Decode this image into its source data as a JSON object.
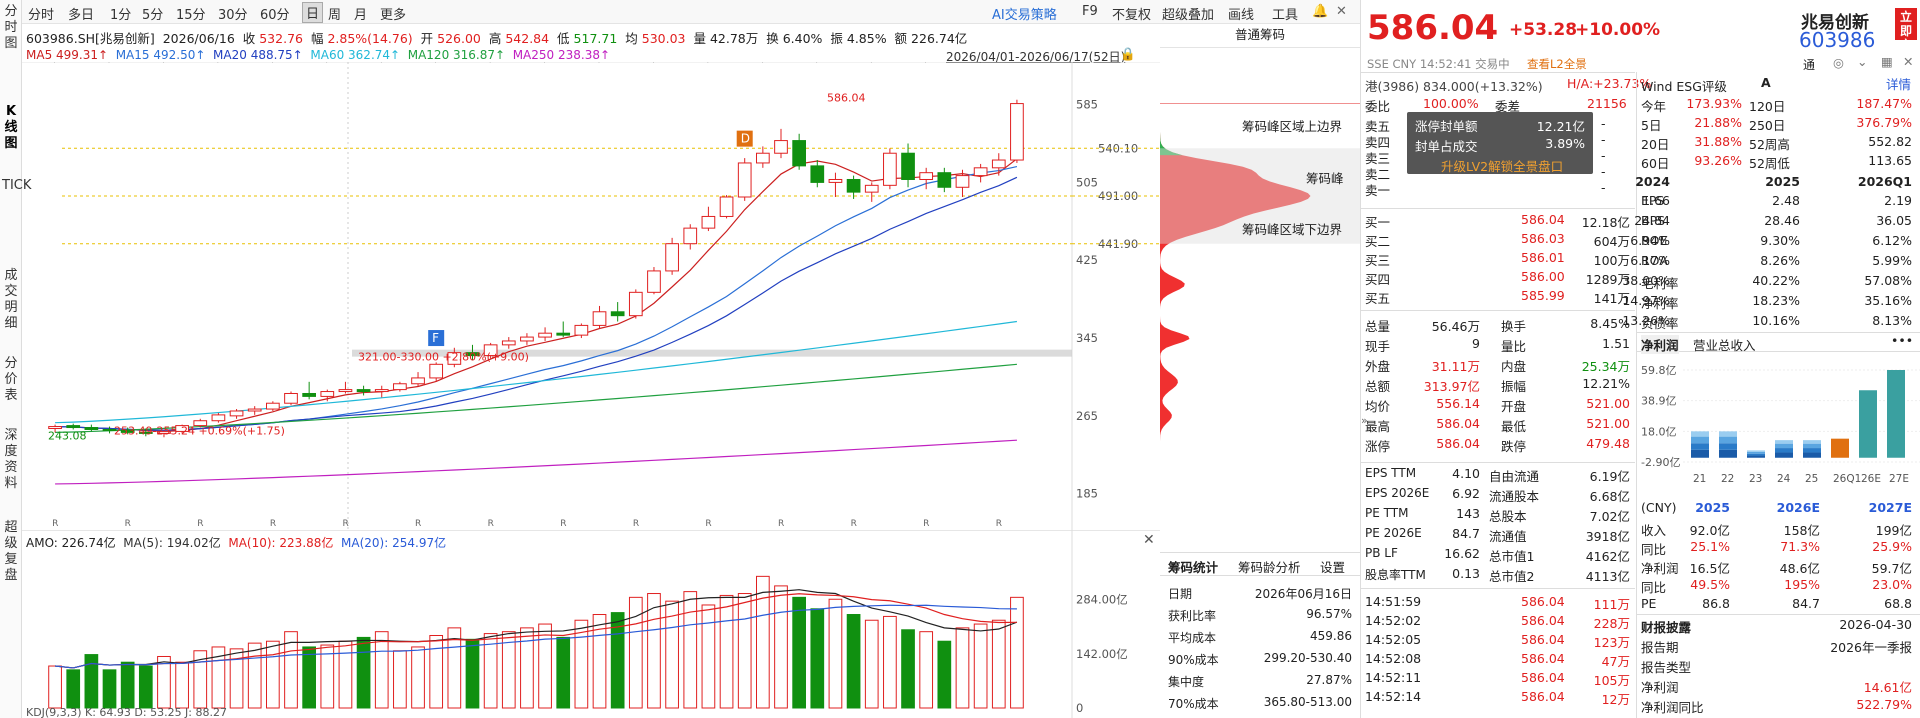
{
  "sidebar": {
    "items": [
      "分时图",
      "K线图",
      "TICK",
      "成交明细",
      "分价表",
      "深度资料",
      "超级复盘"
    ]
  },
  "toolbar": {
    "items": [
      "分时",
      "多日",
      "1分",
      "5分",
      "15分",
      "30分",
      "60分",
      "日",
      "周",
      "月",
      "更多"
    ],
    "active": "日",
    "ai": "AI交易策略",
    "f9": "F9",
    "fq": "不复权",
    "overlay": "超级叠加",
    "draw": "画线",
    "tools": "工具"
  },
  "stock": {
    "code_name": "603986.SH[兆易创新]",
    "date": "2026/06/16",
    "close_l": "收",
    "close": "532.76",
    "amp_l": "幅",
    "amp": "2.85%(14.76)",
    "open_l": "开",
    "open": "526.00",
    "high_l": "高",
    "high": "542.84",
    "low_l": "低",
    "low": "517.71",
    "avg_l": "均",
    "avg": "530.03",
    "vol_l": "量",
    "vol": "42.78万",
    "turn_l": "换",
    "turn": "6.40%",
    "swing_l": "振",
    "swing": "4.85%",
    "amt_l": "额",
    "amt": "226.74亿"
  },
  "ma": {
    "ma5": "MA5 499.31↑",
    "ma15": "MA15 492.50↑",
    "ma20": "MA20 488.75↑",
    "ma60": "MA60 362.74↑",
    "ma120": "MA120 316.87↑",
    "ma250": "MA250 238.38↑",
    "range": "2026/04/01-2026/06/17(52日)"
  },
  "chart_data": {
    "type": "candlestick",
    "price_ticks": [
      "585",
      "540.10",
      "505",
      "491.00",
      "441.90",
      "425",
      "345",
      "265",
      "185"
    ],
    "vol_ticks": [
      "284.00亿",
      "142.00亿",
      "0"
    ],
    "annotations": [
      "586.04",
      "321.00-330.00 +2.80%(+9.00)",
      "253.49-255.24 +0.69%(+1.75)",
      "243.08",
      "D",
      "F"
    ],
    "candles": [
      [
        252,
        256,
        248,
        254
      ],
      [
        255,
        257,
        251,
        253
      ],
      [
        253,
        256,
        249,
        251
      ],
      [
        251,
        254,
        247,
        250
      ],
      [
        250,
        253,
        246,
        248
      ],
      [
        248,
        252,
        244,
        247
      ],
      [
        247,
        250,
        243,
        249
      ],
      [
        249,
        256,
        247,
        255
      ],
      [
        255,
        262,
        253,
        260
      ],
      [
        260,
        268,
        258,
        266
      ],
      [
        265,
        272,
        262,
        270
      ],
      [
        270,
        275,
        266,
        272
      ],
      [
        272,
        280,
        270,
        278
      ],
      [
        278,
        290,
        276,
        288
      ],
      [
        288,
        300,
        282,
        285
      ],
      [
        285,
        292,
        280,
        290
      ],
      [
        290,
        300,
        288,
        292
      ],
      [
        292,
        296,
        286,
        290
      ],
      [
        290,
        296,
        284,
        292
      ],
      [
        292,
        300,
        290,
        298
      ],
      [
        298,
        310,
        295,
        304
      ],
      [
        304,
        320,
        300,
        318
      ],
      [
        318,
        335,
        315,
        330
      ],
      [
        330,
        338,
        322,
        327
      ],
      [
        327,
        340,
        324,
        338
      ],
      [
        338,
        346,
        334,
        342
      ],
      [
        342,
        350,
        338,
        346
      ],
      [
        346,
        356,
        342,
        350
      ],
      [
        350,
        362,
        346,
        348
      ],
      [
        348,
        360,
        345,
        358
      ],
      [
        358,
        378,
        355,
        372
      ],
      [
        372,
        382,
        362,
        368
      ],
      [
        368,
        395,
        365,
        392
      ],
      [
        392,
        418,
        390,
        414
      ],
      [
        414,
        448,
        410,
        442
      ],
      [
        442,
        462,
        436,
        458
      ],
      [
        458,
        480,
        455,
        470
      ],
      [
        470,
        492,
        468,
        490
      ],
      [
        490,
        530,
        486,
        525
      ],
      [
        525,
        542,
        520,
        535
      ],
      [
        535,
        560,
        530,
        548
      ],
      [
        548,
        555,
        518,
        522
      ],
      [
        522,
        528,
        500,
        505
      ],
      [
        505,
        515,
        490,
        508
      ],
      [
        508,
        512,
        488,
        495
      ],
      [
        495,
        505,
        485,
        502
      ],
      [
        502,
        540,
        498,
        535
      ],
      [
        535,
        545,
        500,
        508
      ],
      [
        508,
        520,
        498,
        515
      ],
      [
        515,
        520,
        495,
        500
      ],
      [
        500,
        518,
        490,
        512
      ],
      [
        512,
        524,
        505,
        520
      ],
      [
        520,
        535,
        512,
        528
      ],
      [
        528,
        590,
        525,
        586.04
      ]
    ],
    "vol": [
      110,
      100,
      140,
      100,
      120,
      110,
      135,
      120,
      150,
      160,
      155,
      170,
      175,
      200,
      160,
      165,
      175,
      185,
      200,
      150,
      160,
      190,
      210,
      180,
      195,
      200,
      210,
      220,
      185,
      230,
      245,
      250,
      290,
      300,
      280,
      305,
      270,
      295,
      300,
      345,
      320,
      290,
      260,
      285,
      245,
      230,
      240,
      205,
      200,
      175,
      210,
      220,
      230,
      290
    ]
  },
  "indicators": {
    "amo": "AMO: 226.74亿",
    "ma5": "MA(5): 194.02亿",
    "ma10": "MA(10): 223.88亿",
    "ma20": "MA(20): 254.97亿",
    "kdj": "KDJ(9,3,3)  K: 64.93  D: 53.25  J: 88.27"
  },
  "chip": {
    "title": "普通筹码",
    "top": "筹码峰区域上边界",
    "peak": "筹码峰",
    "bottom": "筹码峰区域下边界",
    "tabs": [
      "筹码统计",
      "筹码龄分析",
      "设置"
    ],
    "stats": [
      [
        "日期",
        "2026年06月16日"
      ],
      [
        "获利比率",
        "96.57%"
      ],
      [
        "平均成本",
        "459.86"
      ],
      [
        "90%成本",
        "299.20-530.40"
      ],
      [
        "集中度",
        "27.87%"
      ],
      [
        "70%成本",
        "365.80-513.00"
      ]
    ]
  },
  "quote": {
    "price": "586.04",
    "chg": "+53.28",
    "pct": "+10.00%",
    "name": "兆易创新",
    "code": "603986",
    "badge": "立即交易",
    "sub": "SSE  CNY  14:52:41  交易中",
    "l2": "查看L2全景",
    "tong": "通",
    "hk": "港(3986)  834.000(+13.32%)",
    "ha": "H/A:+23.73%",
    "wb_l": "委比",
    "wb": "100.00%",
    "wc_l": "委差",
    "wc": "21156",
    "sells": [
      [
        "卖五",
        "-",
        ""
      ],
      [
        "卖四",
        "-",
        ""
      ],
      [
        "卖三",
        "-",
        ""
      ],
      [
        "卖二",
        "-",
        ""
      ],
      [
        "卖一",
        "-",
        ""
      ]
    ],
    "buys": [
      [
        "买一",
        "586.04",
        "12.18亿"
      ],
      [
        "买二",
        "586.03",
        "604万"
      ],
      [
        "买三",
        "586.01",
        "100万"
      ],
      [
        "买四",
        "586.00",
        "1289万"
      ],
      [
        "买五",
        "585.99",
        "141万"
      ]
    ],
    "popup": {
      "r1l": "涨停封单额",
      "r1v": "12.21亿",
      "r2l": "封单占成交",
      "r2v": "3.89%",
      "btn": "升级LV2解锁全景盘口"
    },
    "stats": [
      [
        "总量",
        "56.46万",
        "换手",
        "8.45%"
      ],
      [
        "现手",
        "9",
        "量比",
        "1.51"
      ],
      [
        "外盘",
        "31.11万",
        "内盘",
        "25.34万"
      ],
      [
        "总额",
        "313.97亿",
        "振幅",
        "12.21%"
      ],
      [
        "均价",
        "556.14",
        "开盘",
        "521.00"
      ],
      [
        "最高",
        "586.04",
        "最低",
        "521.00"
      ],
      [
        "涨停",
        "586.04",
        "跌停",
        "479.48"
      ]
    ],
    "val": [
      [
        "EPS TTM",
        "4.10",
        "自由流通",
        "6.19亿"
      ],
      [
        "EPS 2026E",
        "6.92",
        "流通股本",
        "6.68亿"
      ],
      [
        "PE TTM",
        "143",
        "总股本",
        "7.02亿"
      ],
      [
        "PE 2026E",
        "84.7",
        "流通值",
        "3918亿"
      ],
      [
        "PB LF",
        "16.62",
        "总市值1",
        "4162亿"
      ],
      [
        "股息率TTM",
        "0.13",
        "总市值2",
        "4113亿"
      ]
    ],
    "ticks": [
      [
        "14:51:59",
        "586.04",
        "111万"
      ],
      [
        "14:52:02",
        "586.04",
        "228万"
      ],
      [
        "14:52:05",
        "586.04",
        "123万"
      ],
      [
        "14:52:08",
        "586.04",
        "47万"
      ],
      [
        "14:52:11",
        "586.04",
        "105万"
      ],
      [
        "14:52:14",
        "586.04",
        "12万"
      ]
    ]
  },
  "fin": {
    "esg_l": "Wind ESG评级",
    "esg": "A",
    "detail": "详情",
    "perf": [
      [
        "今年",
        "173.93%",
        "120日",
        "187.47%"
      ],
      [
        "5日",
        "21.88%",
        "250日",
        "376.79%"
      ],
      [
        "20日",
        "31.88%",
        "52周高",
        "552.82"
      ],
      [
        "60日",
        "93.26%",
        "52周低",
        "113.65"
      ]
    ],
    "years": [
      "2024",
      "2025",
      "2026Q1"
    ],
    "rows": [
      [
        "EPS",
        "1.66",
        "2.48",
        "2.19"
      ],
      [
        "BPS",
        "24.84",
        "28.46",
        "36.05"
      ],
      [
        "ROE",
        "6.94%",
        "9.30%",
        "6.12%"
      ],
      [
        "ROA",
        "6.17%",
        "8.26%",
        "5.99%"
      ],
      [
        "毛利率",
        "38.00%",
        "40.22%",
        "57.08%"
      ],
      [
        "净利率",
        "14.97%",
        "18.23%",
        "35.16%"
      ],
      [
        "负债率",
        "13.26%",
        "10.16%",
        "8.13%"
      ]
    ],
    "tabs": [
      "净利润",
      "营业总收入"
    ],
    "more": "•••",
    "bar": {
      "yticks": [
        "59.8亿",
        "38.9亿",
        "18.0亿",
        "-2.90亿"
      ],
      "x": [
        "21",
        "22",
        "23",
        "24",
        "25",
        "26Q1",
        "26E",
        "27E"
      ],
      "values": [
        18,
        18,
        5,
        12,
        12,
        13,
        46,
        59.8
      ]
    },
    "est_head": [
      "(CNY)",
      "2025",
      "2026E",
      "2027E"
    ],
    "est": [
      [
        "收入",
        "92.0亿",
        "158亿",
        "199亿"
      ],
      [
        "同比",
        "25.1%",
        "71.3%",
        "25.9%"
      ],
      [
        "净利润",
        "16.5亿",
        "48.6亿",
        "59.7亿"
      ],
      [
        "同比",
        "49.5%",
        "195%",
        "23.0%"
      ],
      [
        "PE",
        "86.8",
        "84.7",
        "68.8"
      ]
    ],
    "report": {
      "title": "财报披露",
      "date": "2026-04-30",
      "r1l": "报告期",
      "r1v": "2026年一季报",
      "r2l": "报告类型",
      "r2v": "",
      "r3l": "净利润",
      "r3v": "14.61亿",
      "r4l": "净利润同比",
      "r4v": "522.79%"
    }
  },
  "colors": {
    "up": "#e02020",
    "down": "#109010",
    "ma5": "#cc2020",
    "ma15": "#2a6fd6",
    "ma20": "#2240c0",
    "ma60": "#20b8d8",
    "ma120": "#20a040",
    "ma250": "#c020c0"
  }
}
